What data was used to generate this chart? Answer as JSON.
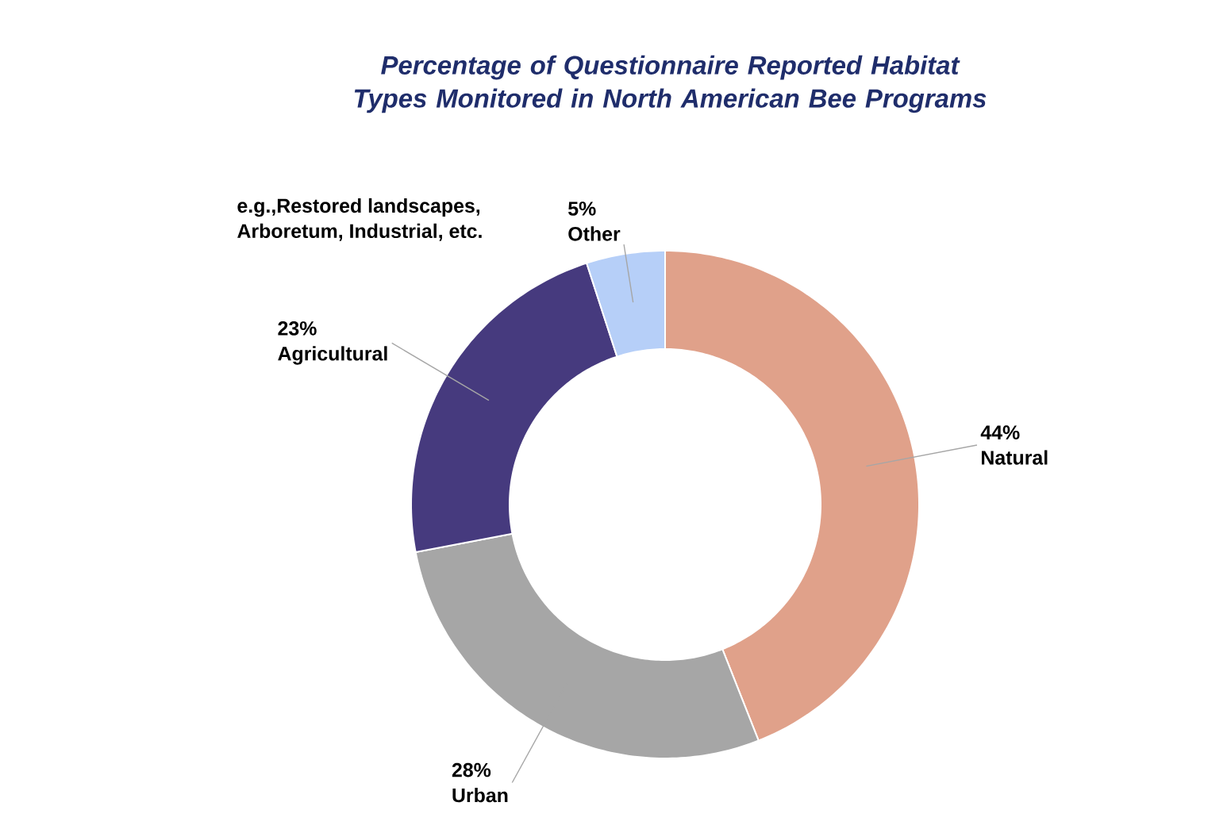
{
  "chart_data": {
    "type": "donut",
    "title": "Percentage of Questionnaire Reported Habitat Types Monitored in North American Bee Programs",
    "categories": [
      "Natural",
      "Urban",
      "Agricultural",
      "Other"
    ],
    "values": [
      44,
      28,
      23,
      5
    ],
    "value_labels": [
      "44%",
      "28%",
      "23%",
      "5%"
    ],
    "colors": [
      "#e0a18a",
      "#a6a6a6",
      "#463a7e",
      "#b6cff8"
    ],
    "annotations": [
      "e.g.,Restored landscapes, Arboretum, Industrial, etc."
    ]
  }
}
